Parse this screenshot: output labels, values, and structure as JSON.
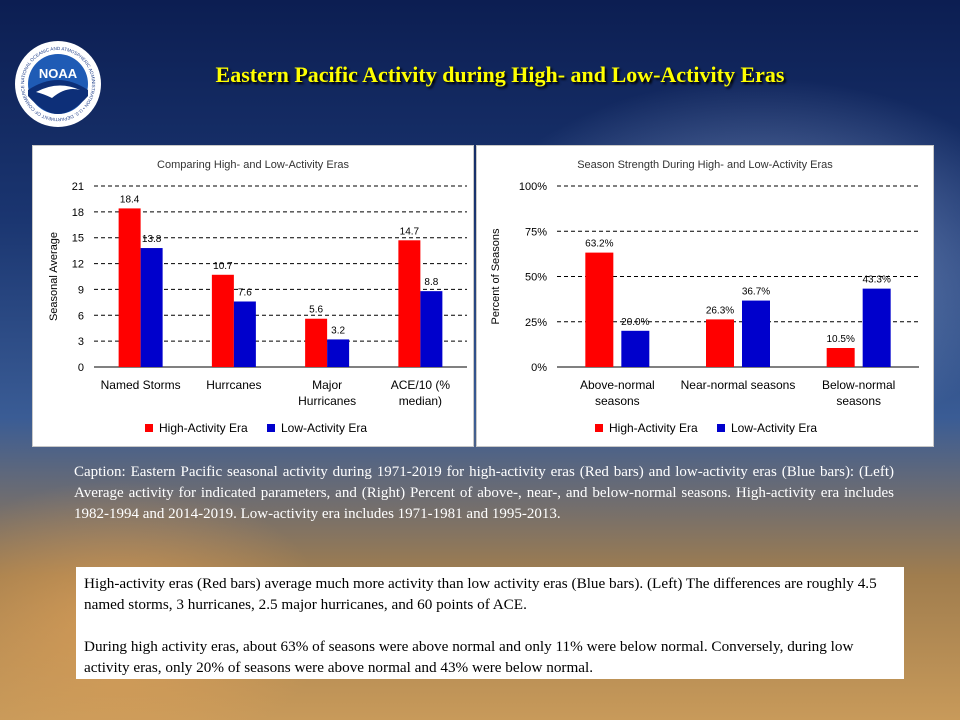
{
  "slide": {
    "title": "Eastern Pacific Activity during High- and Low-Activity Eras",
    "logo_text": "NOAA",
    "logo_ring_text": "NATIONAL OCEANIC AND ATMOSPHERIC ADMINISTRATION • U.S. DEPARTMENT OF COMMERCE",
    "caption": "Caption: Eastern Pacific seasonal activity during 1971-2019 for high-activity eras (Red bars) and low-activity eras (Blue bars): (Left) Average activity for indicated parameters, and (Right) Percent of above-, near-, and below-normal seasons. High-activity era includes 1982-1994 and 2014-2019. Low-activity era includes 1971-1981 and 1995-2013.",
    "summary_p1": "High-activity eras (Red bars) average much more activity than low activity eras (Blue bars). (Left) The differences are roughly 4.5 named storms, 3 hurricanes, 2.5 major hurricanes, and 60 points of ACE.",
    "summary_p2": "During high activity eras, about 63% of seasons were above normal and only 11% were below normal. Conversely, during low activity eras, only 20% of seasons were above normal and 43% were below normal."
  },
  "colors": {
    "high": "#ff0000",
    "low": "#0000cc",
    "title": "#ffff00"
  },
  "chart_data": [
    {
      "type": "bar",
      "title": "Comparing High- and Low-Activity Eras",
      "xlabel": "",
      "ylabel": "Seasonal Average",
      "categories": [
        [
          "Named Storms"
        ],
        [
          "Hurrcanes"
        ],
        [
          "Major",
          "Hurricanes"
        ],
        [
          "ACE/10 (%",
          "median)"
        ]
      ],
      "series": [
        {
          "name": "High-Activity Era",
          "color": "#ff0000",
          "values": [
            18.4,
            10.7,
            5.6,
            14.7
          ],
          "labels": [
            "18.4",
            "10.7",
            "5.6",
            "14.7"
          ]
        },
        {
          "name": "Low-Activity Era",
          "color": "#0000cc",
          "values": [
            13.8,
            7.6,
            3.2,
            8.8
          ],
          "labels": [
            "13.8",
            "7.6",
            "3.2",
            "8.8"
          ]
        }
      ],
      "ylim": [
        0,
        21
      ],
      "yticks": [
        0,
        3,
        6,
        9,
        12,
        15,
        18,
        21
      ],
      "ytick_labels": [
        "0",
        "3",
        "6",
        "9",
        "12",
        "15",
        "18",
        "21"
      ],
      "grid": true,
      "legend": "bottom"
    },
    {
      "type": "bar",
      "title": "Season Strength During High- and Low-Activity Eras",
      "xlabel": "",
      "ylabel": "Percent of Seasons",
      "categories": [
        [
          "Above-normal",
          "seasons"
        ],
        [
          "Near-normal seasons"
        ],
        [
          "Below-normal",
          "seasons"
        ]
      ],
      "series": [
        {
          "name": "High-Activity Era",
          "color": "#ff0000",
          "values": [
            63.2,
            26.3,
            10.5
          ],
          "labels": [
            "63.2%",
            "26.3%",
            "10.5%"
          ]
        },
        {
          "name": "Low-Activity Era",
          "color": "#0000cc",
          "values": [
            20.0,
            36.7,
            43.3
          ],
          "labels": [
            "20.0%",
            "36.7%",
            "43.3%"
          ]
        }
      ],
      "ylim": [
        0,
        100
      ],
      "yticks": [
        0,
        25,
        50,
        75,
        100
      ],
      "ytick_labels": [
        "0%",
        "25%",
        "50%",
        "75%",
        "100%"
      ],
      "grid": true,
      "legend": "bottom"
    }
  ]
}
